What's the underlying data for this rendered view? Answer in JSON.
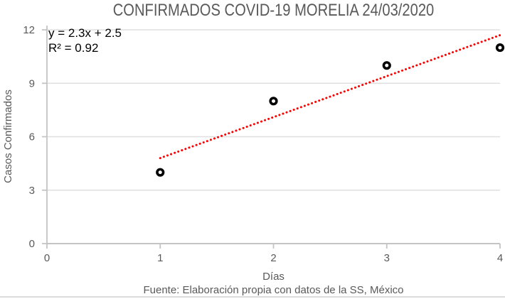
{
  "chart_data": {
    "type": "scatter",
    "title": "CONFIRMADOS COVID-19 MORELIA 24/03/2020",
    "xlabel": "Días",
    "ylabel": "Casos Confirmados",
    "source_note": "Fuente: Elaboración propia con datos de la SS, México",
    "x": [
      1,
      2,
      3,
      4
    ],
    "y": [
      4,
      8,
      10,
      11
    ],
    "xlim": [
      0,
      4
    ],
    "ylim": [
      0,
      12
    ],
    "x_ticks": [
      "0",
      "1",
      "2",
      "3",
      "4"
    ],
    "y_ticks": [
      "0",
      "3",
      "6",
      "9",
      "12"
    ],
    "grid": "horizontal-only",
    "legend": "none",
    "trendline": {
      "type": "linear",
      "equation_label": "y = 2.3x + 2.5",
      "r2_label": "R² = 0.92",
      "slope": 2.3,
      "intercept": 2.5,
      "x_start": 1,
      "x_end": 4.02,
      "color": "#ff0000",
      "style": "dotted"
    },
    "marker": {
      "shape": "ring",
      "color": "#000000",
      "fill": "#ffffff"
    },
    "colors": {
      "title_text": "#595959",
      "axis_text": "#595959",
      "axis_line": "#c4c4c4",
      "gridline": "#dfdfdf",
      "bottom_border": "#dcdcdc"
    }
  }
}
